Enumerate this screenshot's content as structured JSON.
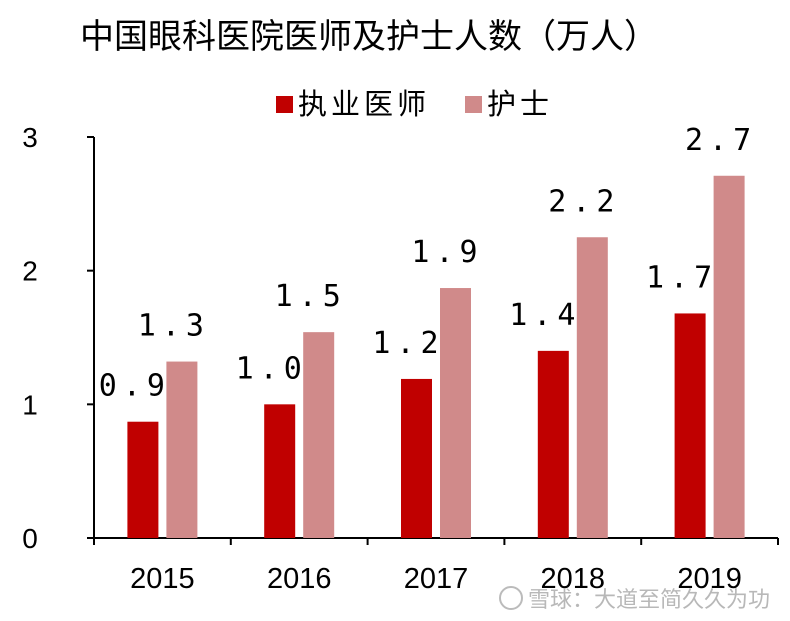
{
  "chart_data": {
    "type": "bar",
    "title": "中国眼科医院医师及护士人数（万人）",
    "categories": [
      "2015",
      "2016",
      "2017",
      "2018",
      "2019"
    ],
    "series": [
      {
        "name": "执业医师",
        "color": "#c00000",
        "values": [
          0.87,
          1.0,
          1.19,
          1.4,
          1.68
        ],
        "labels": [
          "0.9",
          "1.0",
          "1.2",
          "1.4",
          "1.7"
        ]
      },
      {
        "name": "护士",
        "color": "#d08a8a",
        "values": [
          1.32,
          1.54,
          1.87,
          2.25,
          2.71
        ],
        "labels": [
          "1.3",
          "1.5",
          "1.9",
          "2.2",
          "2.7"
        ]
      }
    ],
    "ylim": [
      0,
      3
    ],
    "yticks": [
      "0",
      "1",
      "2",
      "3"
    ],
    "legend": "top-center",
    "grid": false
  },
  "watermark": "雪球：大道至简久久为功"
}
